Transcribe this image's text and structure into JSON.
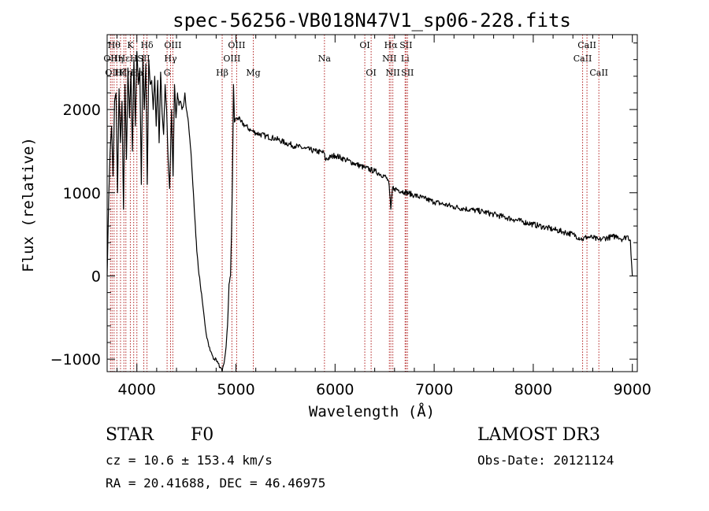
{
  "chart_data": {
    "type": "line",
    "title": "spec-56256-VB018N47V1_sp06-228.fits",
    "xlabel": "Wavelength (Å)",
    "ylabel": "Flux (relative)",
    "xlim": [
      3700,
      9050
    ],
    "ylim": [
      -1150,
      2900
    ],
    "xticks": [
      4000,
      5000,
      6000,
      7000,
      8000,
      9000
    ],
    "xtick_labels": [
      "4000",
      "5000",
      "6000",
      "7000",
      "8000",
      "9000"
    ],
    "yticks": [
      -1000,
      0,
      1000,
      2000
    ],
    "ytick_labels": [
      "−1000",
      "0",
      "1000",
      "2000"
    ],
    "grid": false,
    "line_color": "#000000",
    "marker_color": "#b22222",
    "series": [
      {
        "name": "flux",
        "x": [
          3700,
          3715,
          3730,
          3745,
          3760,
          3775,
          3790,
          3805,
          3820,
          3835,
          3850,
          3865,
          3880,
          3895,
          3910,
          3925,
          3940,
          3955,
          3970,
          3985,
          4000,
          4015,
          4030,
          4045,
          4060,
          4075,
          4090,
          4105,
          4120,
          4135,
          4150,
          4165,
          4180,
          4195,
          4210,
          4225,
          4240,
          4255,
          4270,
          4285,
          4300,
          4315,
          4330,
          4340,
          4350,
          4365,
          4380,
          4395,
          4410,
          4425,
          4440,
          4455,
          4470,
          4485,
          4500,
          4515,
          4530,
          4545,
          4560,
          4575,
          4590,
          4605,
          4620,
          4640,
          4660,
          4680,
          4700,
          4720,
          4740,
          4760,
          4780,
          4800,
          4820,
          4840,
          4861,
          4880,
          4900,
          4915,
          4930,
          4945,
          4955,
          4965,
          4975,
          4985,
          5000,
          5020,
          5050,
          5100,
          5150,
          5200,
          5300,
          5400,
          5500,
          5600,
          5700,
          5800,
          5890,
          5900,
          6000,
          6100,
          6200,
          6300,
          6400,
          6500,
          6540,
          6563,
          6580,
          6600,
          6700,
          6800,
          6900,
          7000,
          7100,
          7200,
          7300,
          7400,
          7500,
          7600,
          7700,
          7800,
          7900,
          8000,
          8100,
          8200,
          8300,
          8400,
          8498,
          8542,
          8600,
          8662,
          8700,
          8800,
          8850,
          8900,
          8950,
          8980,
          9000
        ],
        "y": [
          0,
          900,
          1500,
          1800,
          1200,
          2100,
          2200,
          1000,
          2250,
          1600,
          2100,
          800,
          2300,
          1400,
          2500,
          1900,
          2450,
          1500,
          2600,
          1800,
          2700,
          2300,
          2500,
          1100,
          2650,
          2000,
          2550,
          1100,
          2600,
          2300,
          2350,
          2000,
          2400,
          1800,
          2350,
          1600,
          2450,
          1950,
          1700,
          2300,
          2000,
          1400,
          1050,
          1500,
          2000,
          1200,
          2300,
          1900,
          2200,
          2050,
          2100,
          2000,
          2050,
          2200,
          2000,
          1900,
          1700,
          1500,
          1200,
          900,
          600,
          300,
          100,
          -100,
          -300,
          -500,
          -700,
          -800,
          -900,
          -950,
          -1000,
          -1000,
          -1050,
          -1100,
          -1150,
          -1050,
          -850,
          -600,
          -100,
          0,
          500,
          1200,
          2300,
          1850,
          1900,
          1900,
          1850,
          1800,
          1750,
          1720,
          1680,
          1650,
          1600,
          1560,
          1530,
          1500,
          1480,
          1400,
          1450,
          1400,
          1350,
          1300,
          1260,
          1200,
          1140,
          800,
          1060,
          1050,
          1010,
          970,
          930,
          890,
          860,
          830,
          810,
          790,
          770,
          740,
          710,
          680,
          650,
          620,
          590,
          560,
          530,
          500,
          440,
          470,
          460,
          430,
          450,
          470,
          480,
          440,
          480,
          430,
          0
        ]
      }
    ],
    "line_markers": [
      {
        "w": 3734,
        "label": "OII",
        "row": 2
      },
      {
        "w": 3750,
        "label": "OII",
        "row": 3
      },
      {
        "w": 3770,
        "label": "Hθ",
        "row": 1
      },
      {
        "w": 3798,
        "label": "Hη",
        "row": 2
      },
      {
        "w": 3835,
        "label": "Hζ",
        "row": 3
      },
      {
        "w": 3869,
        "label": "Hε",
        "row": 2
      },
      {
        "w": 3889,
        "label": "Hη",
        "row": 3
      },
      {
        "w": 3934,
        "label": "K",
        "row": 1
      },
      {
        "w": 3968,
        "label": "H",
        "row": 2
      },
      {
        "w": 4000,
        "label": "Ha",
        "row": 3
      },
      {
        "w": 4070,
        "label": "SII",
        "row": 2
      },
      {
        "w": 4102,
        "label": "Hδ",
        "row": 1
      },
      {
        "w": 4305,
        "label": "G",
        "row": 3
      },
      {
        "w": 4340,
        "label": "Hγ",
        "row": 2
      },
      {
        "w": 4363,
        "label": "OIII",
        "row": 1
      },
      {
        "w": 4861,
        "label": "Hβ",
        "row": 3
      },
      {
        "w": 4959,
        "label": "OIII",
        "row": 2
      },
      {
        "w": 5007,
        "label": "OIII",
        "row": 1
      },
      {
        "w": 5175,
        "label": "Mg",
        "row": 3
      },
      {
        "w": 5893,
        "label": "Na",
        "row": 2
      },
      {
        "w": 6300,
        "label": "OI",
        "row": 1
      },
      {
        "w": 6364,
        "label": "OI",
        "row": 3
      },
      {
        "w": 6548,
        "label": "NII",
        "row": 2
      },
      {
        "w": 6563,
        "label": "Hα",
        "row": 1
      },
      {
        "w": 6583,
        "label": "NII",
        "row": 3
      },
      {
        "w": 6707,
        "label": "Li",
        "row": 2
      },
      {
        "w": 6716,
        "label": "SII",
        "row": 1
      },
      {
        "w": 6731,
        "label": "SII",
        "row": 3
      },
      {
        "w": 8498,
        "label": "CaII",
        "row": 2
      },
      {
        "w": 8542,
        "label": "CaII",
        "row": 1
      },
      {
        "w": 8662,
        "label": "CaII",
        "row": 3
      }
    ]
  },
  "info": {
    "class": "STAR",
    "subclass": "F0",
    "survey": "LAMOST DR3",
    "redshift": "cz = 10.6 ± 153.4 km/s",
    "obs_date": "Obs-Date: 20121124",
    "coords": "RA =  20.41688, DEC =  46.46975"
  }
}
